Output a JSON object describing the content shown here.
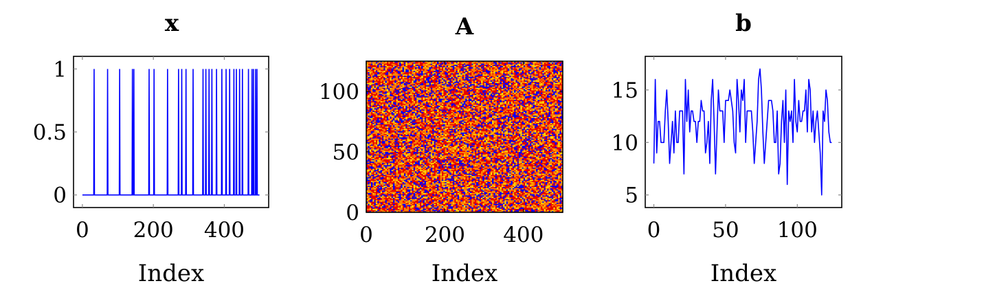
{
  "chart_data": [
    {
      "type": "line",
      "title": "x",
      "xlabel": "Index",
      "ylabel": "",
      "xlim": [
        -25,
        525
      ],
      "ylim": [
        -0.1,
        1.1
      ],
      "xticks": [
        0,
        200,
        400
      ],
      "yticks": [
        0,
        0.5,
        1
      ],
      "xtick_labels": [
        "0",
        "200",
        "400"
      ],
      "ytick_labels": [
        "0",
        "0.5",
        "1"
      ],
      "grid": false,
      "line_color": "#0000ff",
      "n_points": 500,
      "series": [
        {
          "spikes_at": [
            33,
            71,
            105,
            141,
            145,
            188,
            202,
            240,
            271,
            280,
            292,
            312,
            340,
            348,
            357,
            365,
            378,
            393,
            405,
            415,
            427,
            434,
            443,
            451,
            468,
            478,
            482,
            488,
            492
          ]
        }
      ]
    },
    {
      "type": "heatmap",
      "title": "A",
      "xlabel": "Index",
      "ylabel": "",
      "xlim": [
        0,
        500
      ],
      "ylim": [
        0,
        125
      ],
      "xticks": [
        0,
        200,
        400
      ],
      "yticks": [
        0,
        50,
        100
      ],
      "xtick_labels": [
        "0",
        "200",
        "400"
      ],
      "ytick_labels": [
        "0",
        "50",
        "100"
      ],
      "rows": 125,
      "cols": 500,
      "colors": [
        "#e60000",
        "#ff8000",
        "#ffd700",
        "#0000ff"
      ],
      "color_weights": [
        0.42,
        0.28,
        0.12,
        0.18
      ]
    },
    {
      "type": "line",
      "title": "b",
      "xlabel": "Index",
      "ylabel": "",
      "xlim": [
        -6,
        131
      ],
      "ylim": [
        3.8,
        18.2
      ],
      "xticks": [
        0,
        50,
        100
      ],
      "yticks": [
        5,
        10,
        15
      ],
      "xtick_labels": [
        "0",
        "50",
        "100"
      ],
      "ytick_labels": [
        "5",
        "10",
        "15"
      ],
      "grid": false,
      "line_color": "#0000ff",
      "series": [
        {
          "y": [
            8,
            16,
            9,
            12,
            12,
            10,
            10,
            10,
            13,
            15,
            12,
            8,
            10,
            12,
            9,
            13,
            10,
            10,
            13,
            13,
            13,
            7,
            16,
            12,
            15,
            11,
            13,
            13,
            12,
            12,
            10,
            12,
            12,
            14,
            13,
            13,
            9,
            10,
            12,
            8,
            14,
            16,
            12,
            7,
            11,
            15,
            13,
            13,
            13,
            10,
            14,
            14,
            14,
            15,
            14,
            13,
            10,
            9,
            16,
            14,
            11,
            15,
            14,
            16,
            10,
            13,
            13,
            13,
            13,
            11,
            8,
            10,
            12,
            16,
            17,
            15,
            11,
            8,
            10,
            12,
            14,
            14,
            14,
            13,
            10,
            10,
            13,
            7,
            8,
            12,
            14,
            10,
            15,
            6,
            13,
            12,
            13,
            10,
            16,
            12,
            11,
            14,
            12,
            12,
            13,
            13,
            15,
            11,
            16,
            15,
            11,
            13,
            10,
            12,
            13,
            11,
            9,
            5,
            13,
            12,
            15,
            14,
            11,
            10,
            10
          ]
        }
      ]
    }
  ]
}
